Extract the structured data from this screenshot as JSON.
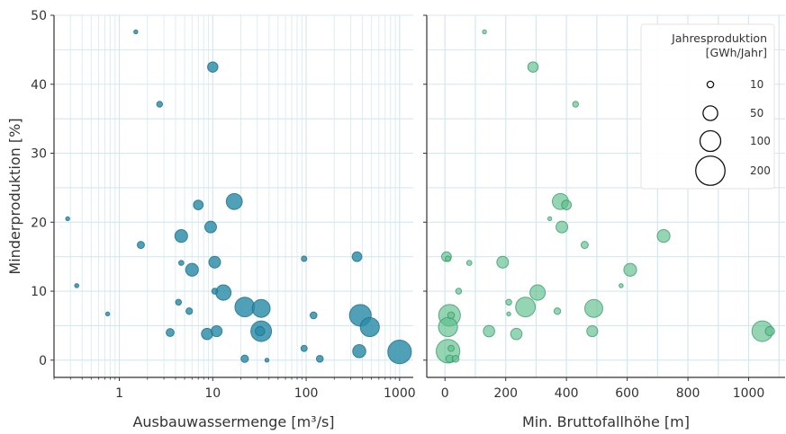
{
  "chart_data": [
    {
      "type": "scatter",
      "xscale": "log",
      "xlabel": "Ausbauwassermenge [m³/s]",
      "ylabel": "Minderproduktion [%]",
      "xlim": [
        0.2,
        1400
      ],
      "ylim": [
        -2.5,
        50
      ],
      "xticks": [
        1,
        10,
        100,
        1000
      ],
      "xtick_labels": [
        "1",
        "10",
        "100",
        "1000"
      ],
      "yticks": [
        0,
        10,
        20,
        30,
        40,
        50
      ],
      "ytick_labels": [
        "0",
        "10",
        "20",
        "30",
        "40",
        "50"
      ],
      "grid": true,
      "color": "#2a8ca8",
      "points": [
        {
          "x": 1.5,
          "y": 47.6,
          "size": 2
        },
        {
          "x": 10,
          "y": 42.5,
          "size": 25
        },
        {
          "x": 2.7,
          "y": 37.1,
          "size": 8
        },
        {
          "x": 17,
          "y": 23,
          "size": 60
        },
        {
          "x": 0.28,
          "y": 20.5,
          "size": 2
        },
        {
          "x": 7,
          "y": 22.5,
          "size": 22
        },
        {
          "x": 9.5,
          "y": 19.3,
          "size": 32
        },
        {
          "x": 4.6,
          "y": 18,
          "size": 38
        },
        {
          "x": 1.7,
          "y": 16.7,
          "size": 12
        },
        {
          "x": 350,
          "y": 15,
          "size": 22
        },
        {
          "x": 95,
          "y": 14.7,
          "size": 7
        },
        {
          "x": 4.6,
          "y": 14.1,
          "size": 6
        },
        {
          "x": 10.5,
          "y": 14.2,
          "size": 32
        },
        {
          "x": 6,
          "y": 13.1,
          "size": 38
        },
        {
          "x": 0.35,
          "y": 10.8,
          "size": 4
        },
        {
          "x": 10.5,
          "y": 10,
          "size": 8
        },
        {
          "x": 13,
          "y": 9.8,
          "size": 55
        },
        {
          "x": 4.3,
          "y": 8.4,
          "size": 8
        },
        {
          "x": 22,
          "y": 7.7,
          "size": 90
        },
        {
          "x": 33,
          "y": 7.5,
          "size": 75
        },
        {
          "x": 5.6,
          "y": 7.1,
          "size": 10
        },
        {
          "x": 0.75,
          "y": 6.7,
          "size": 3
        },
        {
          "x": 120,
          "y": 6.5,
          "size": 11
        },
        {
          "x": 380,
          "y": 6.5,
          "size": 110
        },
        {
          "x": 480,
          "y": 4.8,
          "size": 85
        },
        {
          "x": 33,
          "y": 4.2,
          "size": 100
        },
        {
          "x": 32,
          "y": 4.2,
          "size": 20
        },
        {
          "x": 3.5,
          "y": 4,
          "size": 15
        },
        {
          "x": 8.7,
          "y": 3.8,
          "size": 30
        },
        {
          "x": 11,
          "y": 4.2,
          "size": 28
        },
        {
          "x": 95,
          "y": 1.7,
          "size": 9
        },
        {
          "x": 370,
          "y": 1.3,
          "size": 40
        },
        {
          "x": 1000,
          "y": 1.2,
          "size": 130
        },
        {
          "x": 22,
          "y": 0.2,
          "size": 13
        },
        {
          "x": 38,
          "y": 0,
          "size": 3
        },
        {
          "x": 140,
          "y": 0.2,
          "size": 11
        }
      ]
    },
    {
      "type": "scatter",
      "xlabel": "Min. Bruttofallhöhe [m]",
      "ylabel": "",
      "xlim": [
        -60,
        1120
      ],
      "ylim": [
        -2.5,
        50
      ],
      "xticks": [
        0,
        200,
        400,
        600,
        800,
        1000
      ],
      "xtick_labels": [
        "0",
        "200",
        "400",
        "600",
        "800",
        "1000"
      ],
      "yticks": [
        0,
        10,
        20,
        30,
        40,
        50
      ],
      "grid": true,
      "color": "#5cbf8c",
      "points": [
        {
          "x": 130,
          "y": 47.6,
          "size": 2
        },
        {
          "x": 290,
          "y": 42.5,
          "size": 25
        },
        {
          "x": 430,
          "y": 37.1,
          "size": 8
        },
        {
          "x": 380,
          "y": 23,
          "size": 60
        },
        {
          "x": 400,
          "y": 22.5,
          "size": 22
        },
        {
          "x": 345,
          "y": 20.5,
          "size": 2
        },
        {
          "x": 385,
          "y": 19.3,
          "size": 32
        },
        {
          "x": 720,
          "y": 18,
          "size": 38
        },
        {
          "x": 460,
          "y": 16.7,
          "size": 12
        },
        {
          "x": 5,
          "y": 15,
          "size": 22
        },
        {
          "x": 10,
          "y": 14.7,
          "size": 7
        },
        {
          "x": 80,
          "y": 14.1,
          "size": 6
        },
        {
          "x": 190,
          "y": 14.2,
          "size": 32
        },
        {
          "x": 610,
          "y": 13.1,
          "size": 38
        },
        {
          "x": 580,
          "y": 10.8,
          "size": 4
        },
        {
          "x": 45,
          "y": 10,
          "size": 8
        },
        {
          "x": 305,
          "y": 9.8,
          "size": 55
        },
        {
          "x": 210,
          "y": 8.4,
          "size": 8
        },
        {
          "x": 265,
          "y": 7.7,
          "size": 90
        },
        {
          "x": 490,
          "y": 7.5,
          "size": 75
        },
        {
          "x": 370,
          "y": 7.1,
          "size": 10
        },
        {
          "x": 210,
          "y": 6.7,
          "size": 3
        },
        {
          "x": 20,
          "y": 6.5,
          "size": 11
        },
        {
          "x": 15,
          "y": 6.5,
          "size": 110
        },
        {
          "x": 10,
          "y": 4.8,
          "size": 85
        },
        {
          "x": 1045,
          "y": 4.2,
          "size": 100
        },
        {
          "x": 1070,
          "y": 4.2,
          "size": 20
        },
        {
          "x": 145,
          "y": 4.2,
          "size": 30
        },
        {
          "x": 485,
          "y": 4.2,
          "size": 28
        },
        {
          "x": 235,
          "y": 3.8,
          "size": 30
        },
        {
          "x": 10,
          "y": 1.3,
          "size": 130
        },
        {
          "x": 20,
          "y": 1.7,
          "size": 9
        },
        {
          "x": 15,
          "y": 0.2,
          "size": 13
        },
        {
          "x": 35,
          "y": 0.2,
          "size": 11
        }
      ],
      "legend": {
        "title": "Jahresproduktion\n[GWh/Jahr]",
        "placement": "top-right",
        "entries": [
          {
            "label": "10",
            "size": 10
          },
          {
            "label": "50",
            "size": 50
          },
          {
            "label": "100",
            "size": 100
          },
          {
            "label": "200",
            "size": 200
          }
        ]
      }
    }
  ]
}
